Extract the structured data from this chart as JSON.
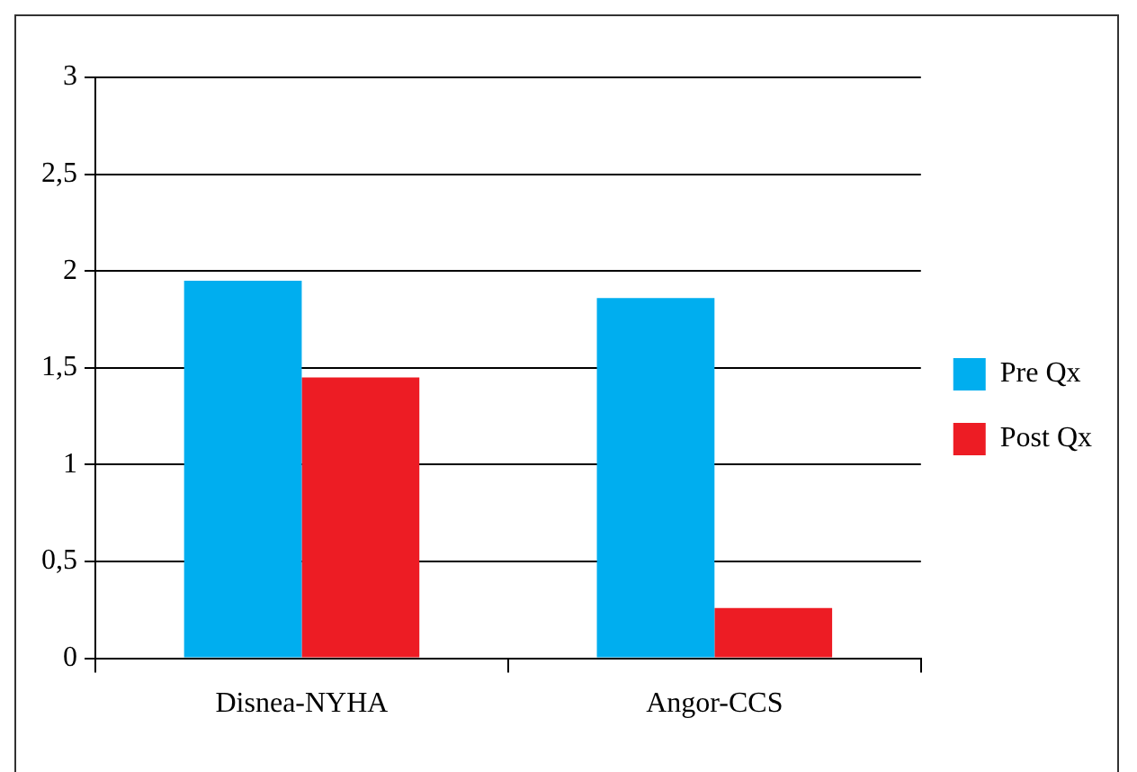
{
  "chart_data": {
    "type": "bar",
    "categories": [
      "Disnea-NYHA",
      "Angor-CCS"
    ],
    "series": [
      {
        "name": "Pre Qx",
        "color": "#00aeef",
        "values": [
          1.95,
          1.86
        ]
      },
      {
        "name": "Post Qx",
        "color": "#ed1c24",
        "values": [
          1.45,
          0.26
        ]
      }
    ],
    "ylim": [
      0,
      3
    ],
    "yticks": [
      0,
      {
        "value": 0.5,
        "label": "0,5"
      },
      1,
      {
        "value": 1.5,
        "label": "1,5"
      },
      2,
      {
        "value": 2.5,
        "label": "2,5"
      },
      3
    ],
    "grid": "y",
    "legend": "right"
  }
}
